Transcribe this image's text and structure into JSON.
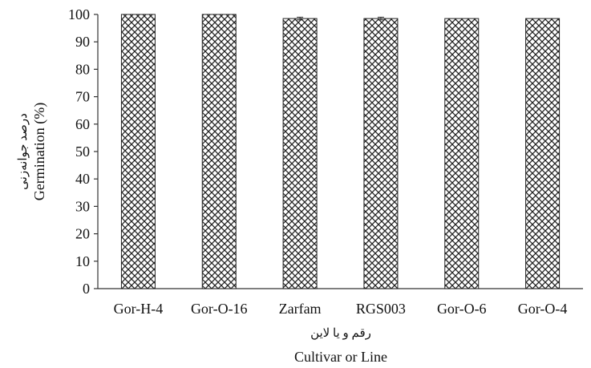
{
  "chart_data": {
    "type": "bar",
    "categories": [
      "Gor-H-4",
      "Gor-O-16",
      "Zarfam",
      "RGS003",
      "Gor-O-6",
      "Gor-O-4"
    ],
    "values": [
      100,
      100,
      98.5,
      98.5,
      98.5,
      98.5
    ],
    "errors": [
      0,
      0,
      0.5,
      0.5,
      0,
      0
    ],
    "ylim": [
      0,
      100
    ],
    "yticks": [
      0,
      10,
      20,
      30,
      40,
      50,
      60,
      70,
      80,
      90,
      100
    ],
    "xlabel": "Cultivar or Line",
    "xlabel_fa": "رقم و یا لاین",
    "ylabel": "Germination (%)",
    "ylabel_fa": "درصد جوانه‌زنی",
    "grid": false,
    "legend": "none",
    "bar_fill": "crosshatch",
    "colors": {
      "bar_fill": "#ffffff",
      "bar_pattern": "#222222",
      "bar_edge": "#222222",
      "axis": "#333333",
      "text": "#111111"
    }
  }
}
